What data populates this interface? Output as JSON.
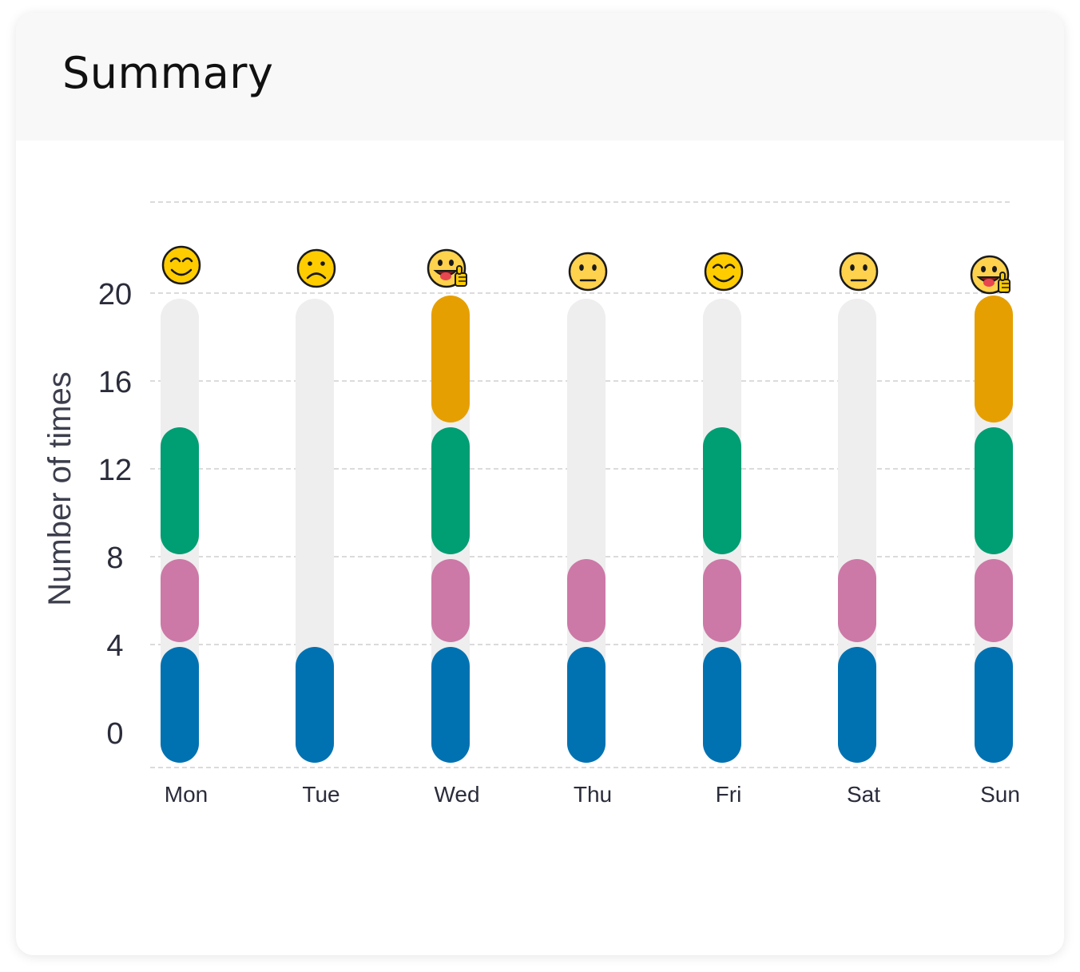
{
  "card": {
    "title": "Summary"
  },
  "chart_data": {
    "type": "bar",
    "stacked": true,
    "title": "",
    "xlabel": "",
    "ylabel": "Number of times",
    "ylim": [
      0,
      20
    ],
    "y_ticks": [
      0,
      4,
      8,
      12,
      16,
      20
    ],
    "grid": true,
    "legend": "none",
    "categories": [
      "Mon",
      "Tue",
      "Wed",
      "Thu",
      "Fri",
      "Sat",
      "Sun"
    ],
    "moods": [
      "smiling",
      "frowning",
      "tongue-thumbs-up",
      "neutral",
      "smiling",
      "neutral",
      "tongue-thumbs-up"
    ],
    "series": [
      {
        "color": "#0072b2",
        "values": [
          4,
          4,
          4,
          4,
          4,
          4,
          4
        ]
      },
      {
        "color": "#cc79a7",
        "values": [
          4,
          0,
          4,
          4,
          4,
          4,
          4
        ]
      },
      {
        "color": "#009e73",
        "values": [
          6,
          0,
          6,
          0,
          6,
          0,
          6
        ]
      },
      {
        "color": "#e69f00",
        "values": [
          0,
          0,
          6,
          0,
          0,
          0,
          6
        ]
      }
    ],
    "track_color": "#eeeeee"
  }
}
